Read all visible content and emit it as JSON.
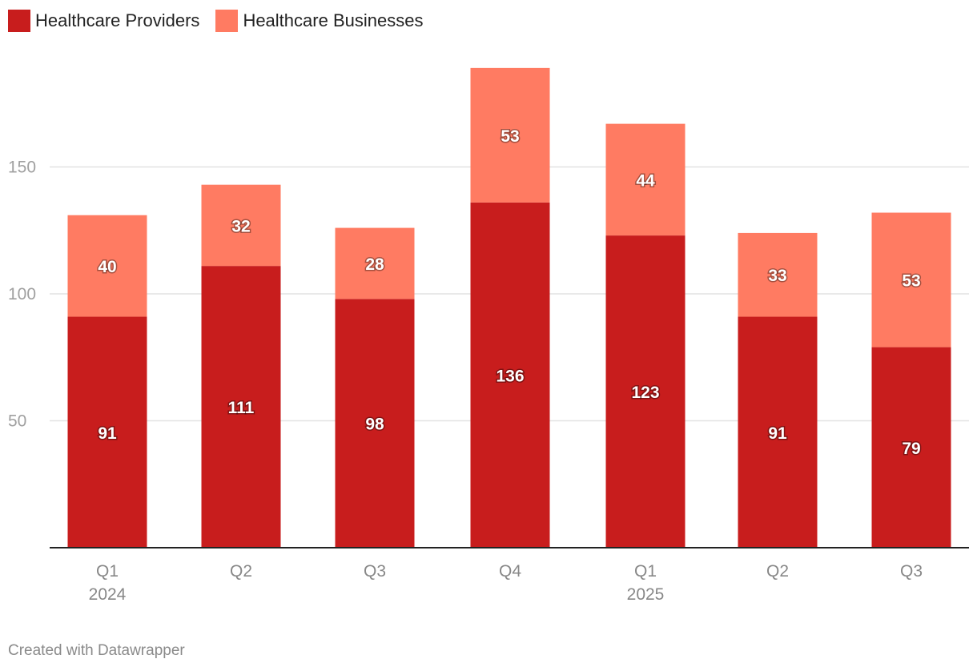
{
  "legend": {
    "providers_label": "Healthcare Providers",
    "businesses_label": "Healthcare Businesses"
  },
  "colors": {
    "providers": "#c81d1d",
    "businesses": "#ff7b62",
    "grid": "#e2e2e2",
    "baseline": "#222222"
  },
  "chart_data": {
    "type": "bar",
    "stacked": true,
    "categories": [
      "Q1",
      "Q2",
      "Q3",
      "Q4",
      "Q1",
      "Q2",
      "Q3"
    ],
    "year_labels": [
      "2024",
      "",
      "",
      "",
      "2025",
      "",
      ""
    ],
    "series": [
      {
        "name": "Healthcare Providers",
        "values": [
          91,
          111,
          98,
          136,
          123,
          91,
          79
        ]
      },
      {
        "name": "Healthcare Businesses",
        "values": [
          40,
          32,
          28,
          53,
          44,
          33,
          53
        ]
      }
    ],
    "yticks": [
      50,
      100,
      150
    ],
    "ylim": [
      0,
      200
    ],
    "grid": true,
    "legend_position": "top-left"
  },
  "footer": "Created with Datawrapper"
}
